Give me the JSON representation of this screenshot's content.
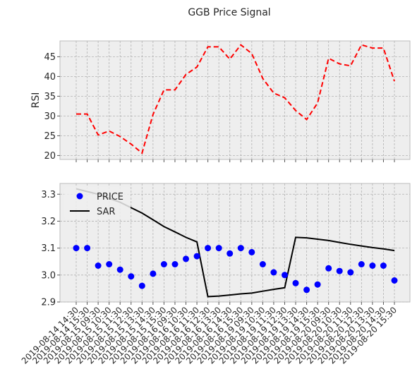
{
  "chart_data": {
    "title": "GGB Price Signal",
    "x": [
      "2019-08-14 14:30",
      "2019-08-14 15:30",
      "2019-08-15 09:30",
      "2019-08-15 10:30",
      "2019-08-15 11:30",
      "2019-08-15 12:30",
      "2019-08-15 13:30",
      "2019-08-15 14:30",
      "2019-08-15 15:30",
      "2019-08-16 09:30",
      "2019-08-16 10:30",
      "2019-08-16 11:30",
      "2019-08-16 12:30",
      "2019-08-16 13:30",
      "2019-08-16 14:30",
      "2019-08-16 15:30",
      "2019-08-19 09:30",
      "2019-08-19 10:30",
      "2019-08-19 11:30",
      "2019-08-19 12:30",
      "2019-08-19 13:30",
      "2019-08-19 14:30",
      "2019-08-19 15:30",
      "2019-08-20 09:30",
      "2019-08-20 10:30",
      "2019-08-20 11:30",
      "2019-08-20 12:30",
      "2019-08-20 13:30",
      "2019-08-20 14:30",
      "2019-08-20 15:30"
    ],
    "panels": [
      {
        "type": "line",
        "ylabel": "RSI",
        "ylim": [
          19,
          49
        ],
        "yticks": [
          20,
          25,
          30,
          35,
          40,
          45
        ],
        "grid": true,
        "series": [
          {
            "values": [
              30.5,
              30.5,
              25.2,
              26.2,
              24.8,
              22.9,
              20.6,
              30.4,
              36.6,
              36.6,
              40.5,
              42.4,
              47.5,
              47.5,
              44.4,
              48.0,
              45.8,
              39.5,
              35.8,
              34.6,
              31.4,
              29.1,
              33.3,
              44.6,
              43.2,
              42.7,
              48.0,
              47.2,
              47.2,
              38.8
            ],
            "style": "dashed",
            "color": "#ff0000"
          }
        ]
      },
      {
        "type": "line+scatter",
        "ylim": [
          2.9,
          3.34
        ],
        "yticks": [
          2.9,
          3.0,
          3.1,
          3.2,
          3.3
        ],
        "grid": true,
        "legend": "top-left",
        "series": [
          {
            "name": "PRICE",
            "type": "scatter",
            "color": "#0000ff",
            "values": [
              3.1,
              3.1,
              3.035,
              3.04,
              3.02,
              2.995,
              2.96,
              3.005,
              3.04,
              3.04,
              3.06,
              3.07,
              3.1,
              3.1,
              3.08,
              3.1,
              3.085,
              3.04,
              3.01,
              3.0,
              2.97,
              2.945,
              2.965,
              3.025,
              3.015,
              3.01,
              3.04,
              3.035,
              3.035,
              2.98
            ]
          },
          {
            "name": "SAR",
            "type": "line",
            "color": "#000000",
            "values": [
              3.32,
              3.31,
              3.3,
              3.285,
              3.27,
              3.25,
              3.23,
              3.205,
              3.18,
              3.16,
              3.14,
              3.123,
              2.92,
              2.922,
              2.926,
              2.93,
              2.933,
              2.94,
              2.947,
              2.953,
              3.14,
              3.138,
              3.133,
              3.128,
              3.121,
              3.114,
              3.108,
              3.102,
              3.097,
              3.091
            ]
          }
        ]
      }
    ]
  }
}
